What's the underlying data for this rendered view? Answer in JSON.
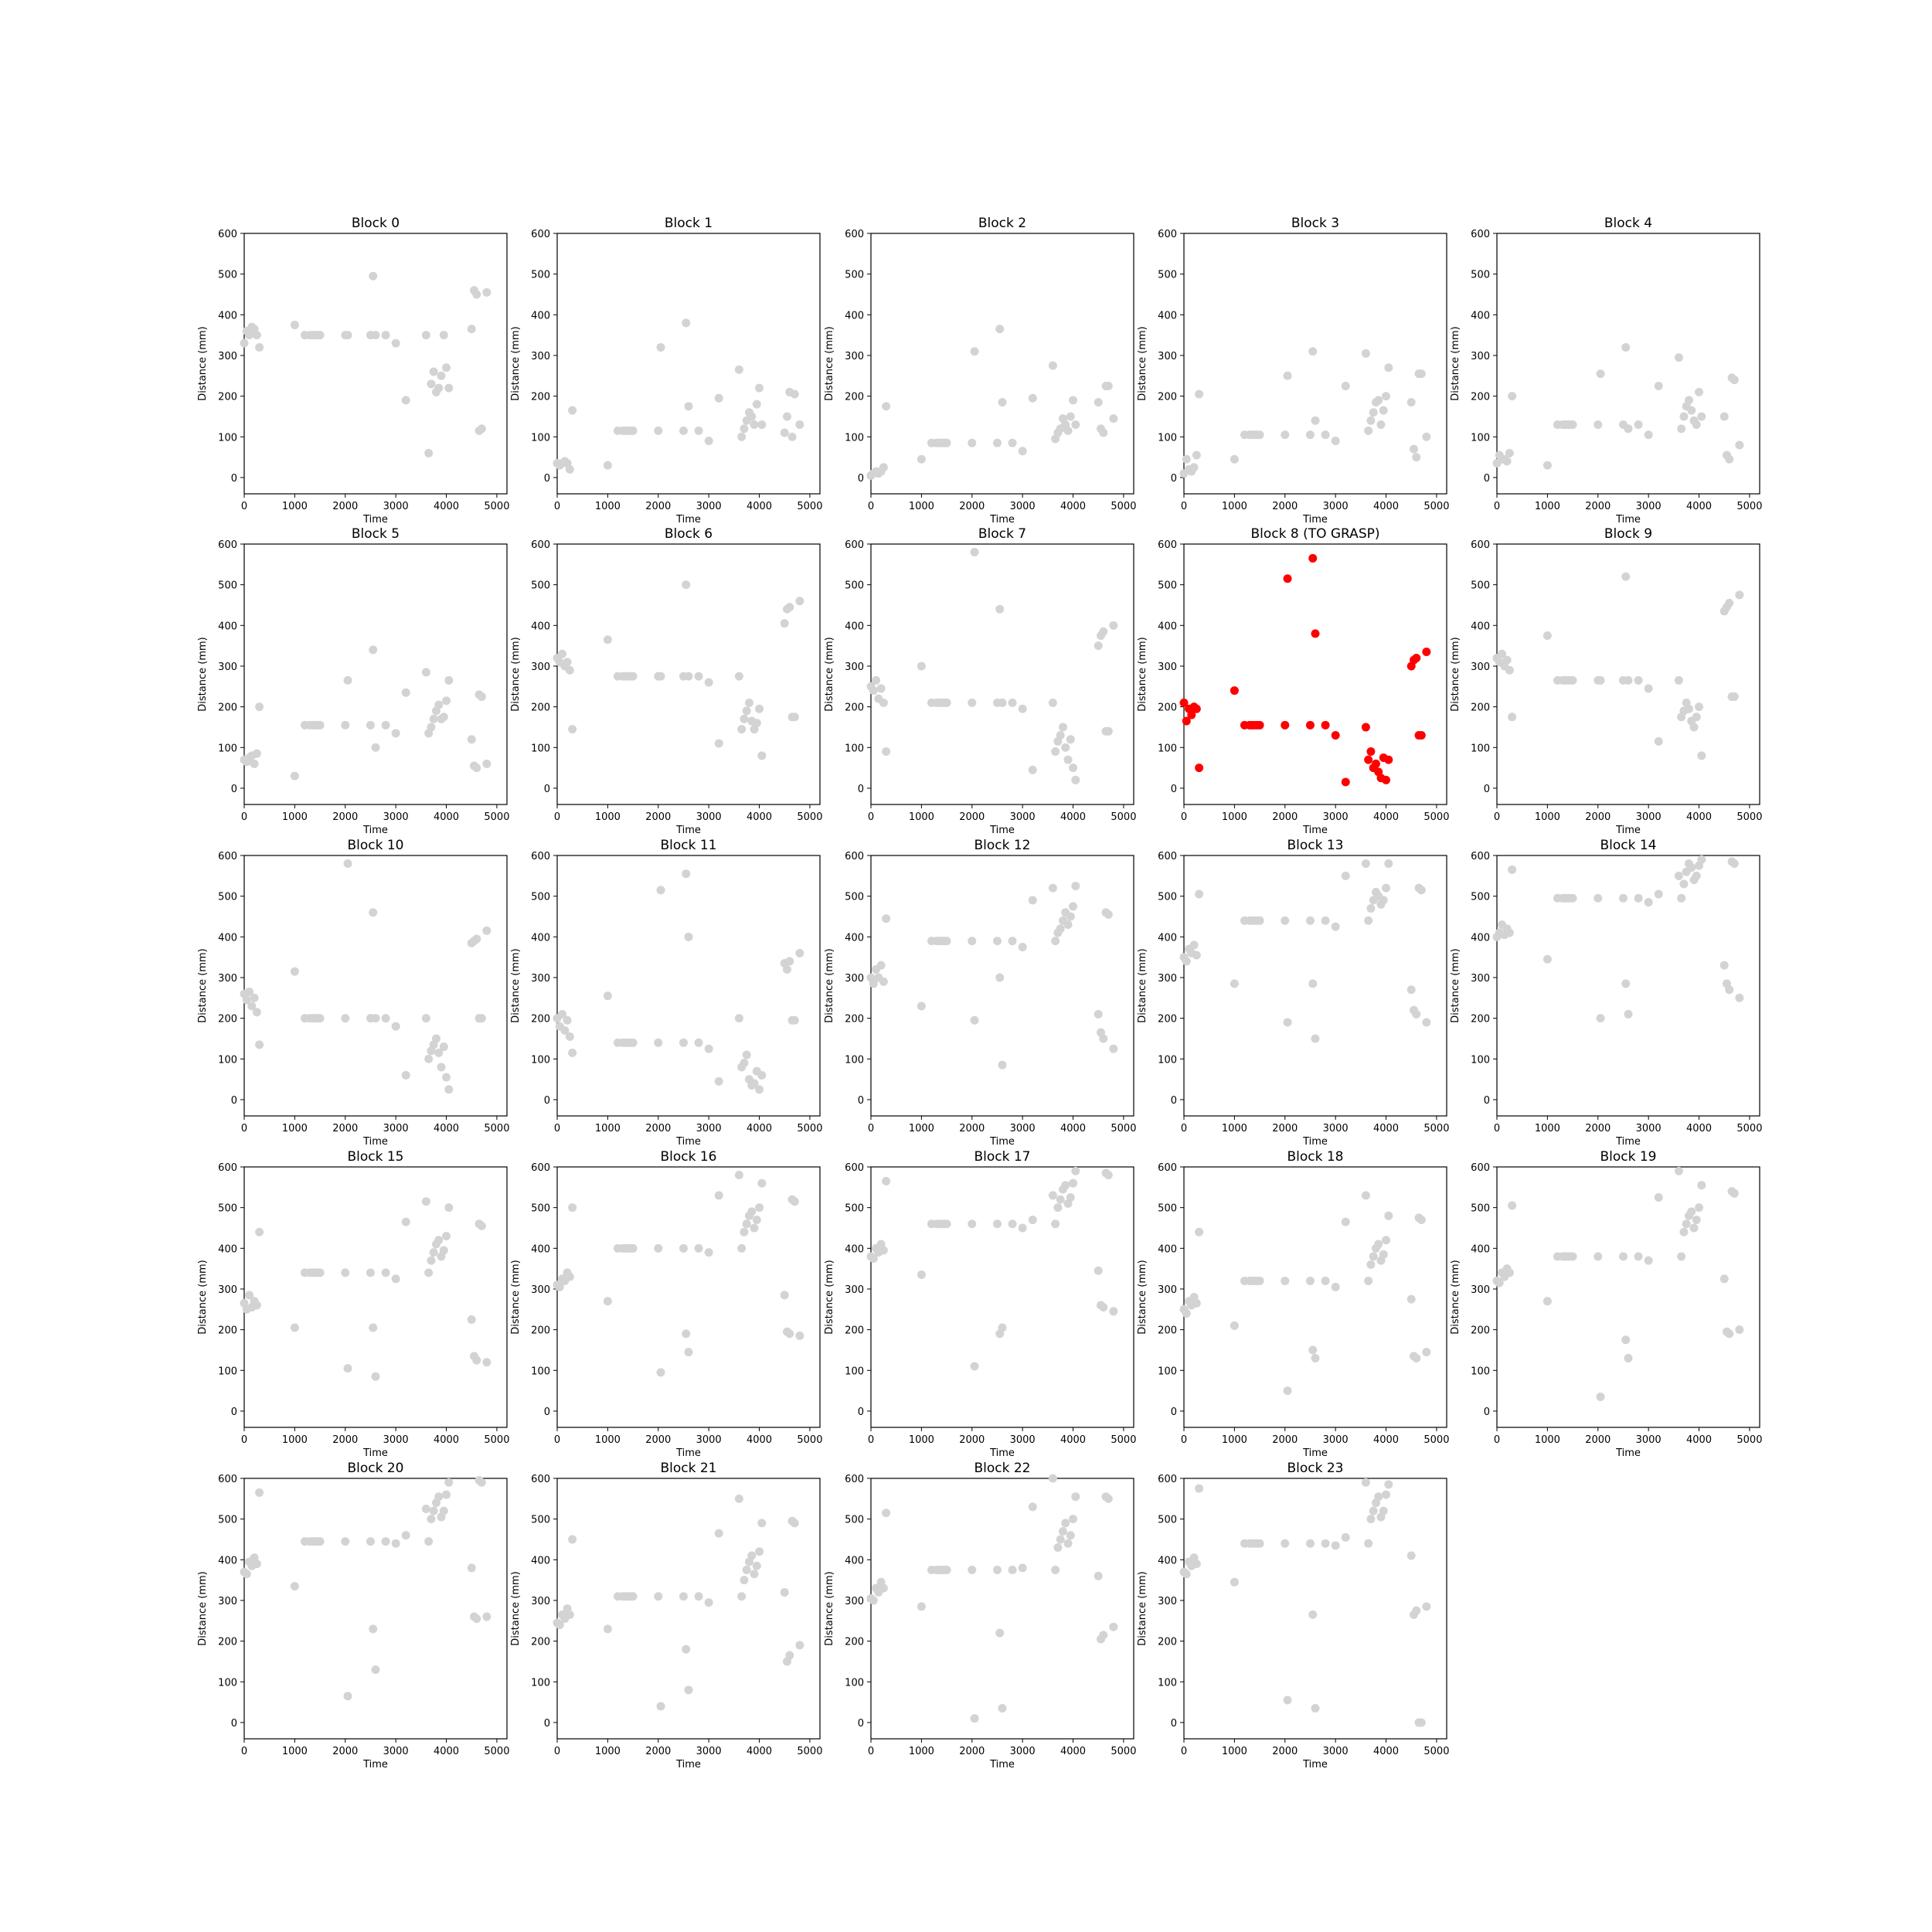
{
  "chart_data": {
    "type": "scatter",
    "layout": "small-multiples",
    "x_label": "Time",
    "y_label": "Distance (mm)",
    "xlim": [
      0,
      5200
    ],
    "ylim": [
      -40,
      600
    ],
    "x_ticks": [
      0,
      1000,
      2000,
      3000,
      4000,
      5000
    ],
    "y_ticks": [
      0,
      100,
      200,
      300,
      400,
      500,
      600
    ],
    "default_color": "#d3d3d3",
    "highlight_color": "#ff0000",
    "x_times": [
      0,
      50,
      100,
      150,
      200,
      250,
      300,
      1000,
      1200,
      1300,
      1350,
      1400,
      1450,
      1500,
      2000,
      2050,
      2500,
      2550,
      2600,
      2800,
      3000,
      3200,
      3600,
      3650,
      3700,
      3750,
      3800,
      3850,
      3900,
      3950,
      4000,
      4050,
      4500,
      4550,
      4600,
      4650,
      4700,
      4800
    ],
    "panels": [
      {
        "title": "Block 0",
        "highlight": false,
        "y": [
          330,
          360,
          350,
          370,
          365,
          350,
          320,
          375,
          350,
          350,
          350,
          350,
          350,
          350,
          350,
          350,
          350,
          495,
          350,
          350,
          330,
          190,
          350,
          60,
          230,
          260,
          210,
          220,
          250,
          350,
          270,
          220,
          365,
          460,
          450,
          115,
          120,
          455
        ]
      },
      {
        "title": "Block 1",
        "highlight": false,
        "y": [
          35,
          30,
          35,
          40,
          35,
          20,
          165,
          30,
          115,
          115,
          115,
          115,
          115,
          115,
          115,
          320,
          115,
          380,
          175,
          115,
          90,
          195,
          265,
          100,
          120,
          140,
          160,
          150,
          130,
          180,
          220,
          130,
          110,
          150,
          210,
          100,
          205,
          130
        ]
      },
      {
        "title": "Block 2",
        "highlight": false,
        "y": [
          5,
          10,
          15,
          10,
          15,
          25,
          175,
          45,
          85,
          85,
          85,
          85,
          85,
          85,
          85,
          310,
          85,
          365,
          185,
          85,
          65,
          195,
          275,
          95,
          110,
          120,
          145,
          130,
          115,
          150,
          190,
          130,
          185,
          120,
          110,
          225,
          225,
          145
        ]
      },
      {
        "title": "Block 3",
        "highlight": false,
        "y": [
          10,
          45,
          20,
          15,
          25,
          55,
          205,
          45,
          105,
          105,
          105,
          105,
          105,
          105,
          105,
          250,
          105,
          310,
          140,
          105,
          90,
          225,
          305,
          115,
          140,
          160,
          185,
          190,
          130,
          165,
          200,
          270,
          185,
          70,
          50,
          255,
          255,
          100
        ]
      },
      {
        "title": "Block 4",
        "highlight": false,
        "y": [
          35,
          55,
          45,
          45,
          40,
          60,
          200,
          30,
          130,
          130,
          130,
          130,
          130,
          130,
          130,
          255,
          130,
          320,
          120,
          130,
          105,
          225,
          295,
          120,
          150,
          175,
          190,
          165,
          140,
          130,
          210,
          150,
          150,
          55,
          45,
          245,
          240,
          80
        ]
      },
      {
        "title": "Block 5",
        "highlight": false,
        "y": [
          70,
          65,
          75,
          80,
          60,
          85,
          200,
          30,
          155,
          155,
          155,
          155,
          155,
          155,
          155,
          265,
          155,
          340,
          100,
          155,
          135,
          235,
          285,
          135,
          150,
          170,
          190,
          205,
          170,
          175,
          215,
          265,
          120,
          55,
          50,
          230,
          225,
          60
        ]
      },
      {
        "title": "Block 6",
        "highlight": false,
        "y": [
          320,
          310,
          330,
          300,
          310,
          290,
          145,
          365,
          275,
          275,
          275,
          275,
          275,
          275,
          275,
          275,
          275,
          500,
          275,
          275,
          260,
          110,
          275,
          145,
          170,
          190,
          210,
          165,
          145,
          160,
          195,
          80,
          405,
          440,
          445,
          175,
          175,
          460
        ]
      },
      {
        "title": "Block 7",
        "highlight": false,
        "y": [
          250,
          240,
          265,
          220,
          245,
          210,
          90,
          300,
          210,
          210,
          210,
          210,
          210,
          210,
          210,
          580,
          210,
          440,
          210,
          210,
          195,
          45,
          210,
          90,
          115,
          130,
          150,
          100,
          70,
          120,
          50,
          20,
          350,
          375,
          385,
          140,
          140,
          400
        ]
      },
      {
        "title": "Block 8 (TO GRASP)",
        "highlight": true,
        "y": [
          210,
          165,
          195,
          180,
          200,
          195,
          50,
          240,
          155,
          155,
          155,
          155,
          155,
          155,
          155,
          515,
          155,
          565,
          380,
          155,
          130,
          15,
          150,
          70,
          90,
          50,
          60,
          40,
          25,
          75,
          20,
          70,
          300,
          315,
          320,
          130,
          130,
          335
        ]
      },
      {
        "title": "Block 9",
        "highlight": false,
        "y": [
          320,
          310,
          330,
          300,
          315,
          290,
          175,
          375,
          265,
          265,
          265,
          265,
          265,
          265,
          265,
          265,
          265,
          520,
          265,
          265,
          245,
          115,
          265,
          175,
          190,
          210,
          195,
          165,
          150,
          175,
          200,
          80,
          435,
          445,
          455,
          225,
          225,
          475
        ]
      },
      {
        "title": "Block 10",
        "highlight": false,
        "y": [
          260,
          245,
          265,
          230,
          250,
          215,
          135,
          315,
          200,
          200,
          200,
          200,
          200,
          200,
          200,
          580,
          200,
          460,
          200,
          200,
          180,
          60,
          200,
          100,
          120,
          135,
          150,
          115,
          80,
          130,
          55,
          25,
          385,
          390,
          395,
          200,
          200,
          415
        ]
      },
      {
        "title": "Block 11",
        "highlight": false,
        "y": [
          200,
          180,
          210,
          170,
          195,
          155,
          115,
          255,
          140,
          140,
          140,
          140,
          140,
          140,
          140,
          515,
          140,
          555,
          400,
          140,
          125,
          45,
          200,
          80,
          90,
          110,
          50,
          35,
          40,
          70,
          25,
          60,
          335,
          320,
          340,
          195,
          195,
          360
        ]
      },
      {
        "title": "Block 12",
        "highlight": false,
        "y": [
          300,
          285,
          320,
          300,
          330,
          290,
          445,
          230,
          390,
          390,
          390,
          390,
          390,
          390,
          390,
          195,
          390,
          300,
          85,
          390,
          375,
          490,
          520,
          390,
          410,
          420,
          440,
          460,
          430,
          450,
          475,
          525,
          210,
          165,
          150,
          460,
          455,
          125
        ]
      },
      {
        "title": "Block 13",
        "highlight": false,
        "y": [
          350,
          340,
          370,
          360,
          380,
          355,
          505,
          285,
          440,
          440,
          440,
          440,
          440,
          440,
          440,
          190,
          440,
          285,
          150,
          440,
          425,
          550,
          580,
          440,
          470,
          490,
          510,
          500,
          480,
          490,
          520,
          580,
          270,
          220,
          210,
          520,
          515,
          190
        ]
      },
      {
        "title": "Block 14",
        "highlight": false,
        "y": [
          400,
          410,
          430,
          405,
          420,
          410,
          565,
          345,
          495,
          495,
          495,
          495,
          495,
          495,
          495,
          200,
          495,
          285,
          210,
          495,
          485,
          505,
          550,
          495,
          530,
          560,
          580,
          570,
          540,
          550,
          575,
          590,
          330,
          285,
          270,
          585,
          580,
          250
        ]
      },
      {
        "title": "Block 15",
        "highlight": false,
        "y": [
          265,
          250,
          285,
          255,
          270,
          260,
          440,
          205,
          340,
          340,
          340,
          340,
          340,
          340,
          340,
          105,
          340,
          205,
          85,
          340,
          325,
          465,
          515,
          340,
          370,
          390,
          410,
          420,
          380,
          395,
          430,
          500,
          225,
          135,
          125,
          460,
          455,
          120
        ]
      },
      {
        "title": "Block 16",
        "highlight": false,
        "y": [
          310,
          305,
          325,
          320,
          340,
          330,
          500,
          270,
          400,
          400,
          400,
          400,
          400,
          400,
          400,
          95,
          400,
          190,
          145,
          400,
          390,
          530,
          580,
          400,
          440,
          460,
          480,
          490,
          450,
          470,
          500,
          560,
          285,
          195,
          190,
          520,
          515,
          185
        ]
      },
      {
        "title": "Block 17",
        "highlight": false,
        "y": [
          380,
          375,
          400,
          390,
          410,
          395,
          565,
          335,
          460,
          460,
          460,
          460,
          460,
          460,
          460,
          110,
          460,
          190,
          205,
          460,
          450,
          470,
          530,
          460,
          500,
          520,
          545,
          555,
          510,
          525,
          560,
          590,
          345,
          260,
          255,
          585,
          580,
          245
        ]
      },
      {
        "title": "Block 18",
        "highlight": false,
        "y": [
          250,
          240,
          270,
          260,
          280,
          265,
          440,
          210,
          320,
          320,
          320,
          320,
          320,
          320,
          320,
          50,
          320,
          150,
          130,
          320,
          305,
          465,
          530,
          320,
          360,
          380,
          400,
          410,
          370,
          385,
          420,
          480,
          275,
          135,
          130,
          475,
          470,
          145
        ]
      },
      {
        "title": "Block 19",
        "highlight": false,
        "y": [
          320,
          315,
          340,
          330,
          350,
          340,
          505,
          270,
          380,
          380,
          380,
          380,
          380,
          380,
          380,
          35,
          380,
          175,
          130,
          380,
          370,
          525,
          590,
          380,
          440,
          460,
          480,
          490,
          450,
          470,
          500,
          555,
          325,
          195,
          190,
          540,
          535,
          200
        ]
      },
      {
        "title": "Block 20",
        "highlight": false,
        "y": [
          370,
          365,
          395,
          385,
          405,
          390,
          565,
          335,
          445,
          445,
          445,
          445,
          445,
          445,
          445,
          65,
          445,
          230,
          130,
          445,
          440,
          460,
          525,
          445,
          500,
          520,
          540,
          555,
          505,
          520,
          560,
          590,
          380,
          260,
          255,
          595,
          590,
          260
        ]
      },
      {
        "title": "Block 21",
        "highlight": false,
        "y": [
          245,
          240,
          265,
          255,
          280,
          265,
          450,
          230,
          310,
          310,
          310,
          310,
          310,
          310,
          310,
          40,
          310,
          180,
          80,
          310,
          295,
          465,
          550,
          310,
          350,
          375,
          395,
          410,
          365,
          385,
          420,
          490,
          320,
          150,
          165,
          495,
          490,
          190
        ]
      },
      {
        "title": "Block 22",
        "highlight": false,
        "y": [
          305,
          300,
          330,
          320,
          345,
          330,
          515,
          285,
          375,
          375,
          375,
          375,
          375,
          375,
          375,
          10,
          375,
          220,
          35,
          375,
          380,
          530,
          600,
          375,
          430,
          450,
          470,
          490,
          440,
          460,
          500,
          555,
          360,
          205,
          215,
          555,
          550,
          235
        ]
      },
      {
        "title": "Block 23",
        "highlight": false,
        "y": [
          370,
          365,
          395,
          385,
          405,
          390,
          575,
          345,
          440,
          440,
          440,
          440,
          440,
          440,
          440,
          55,
          440,
          265,
          35,
          440,
          435,
          455,
          590,
          440,
          500,
          520,
          540,
          555,
          505,
          520,
          560,
          585,
          410,
          265,
          275,
          0,
          0,
          285
        ]
      }
    ]
  }
}
